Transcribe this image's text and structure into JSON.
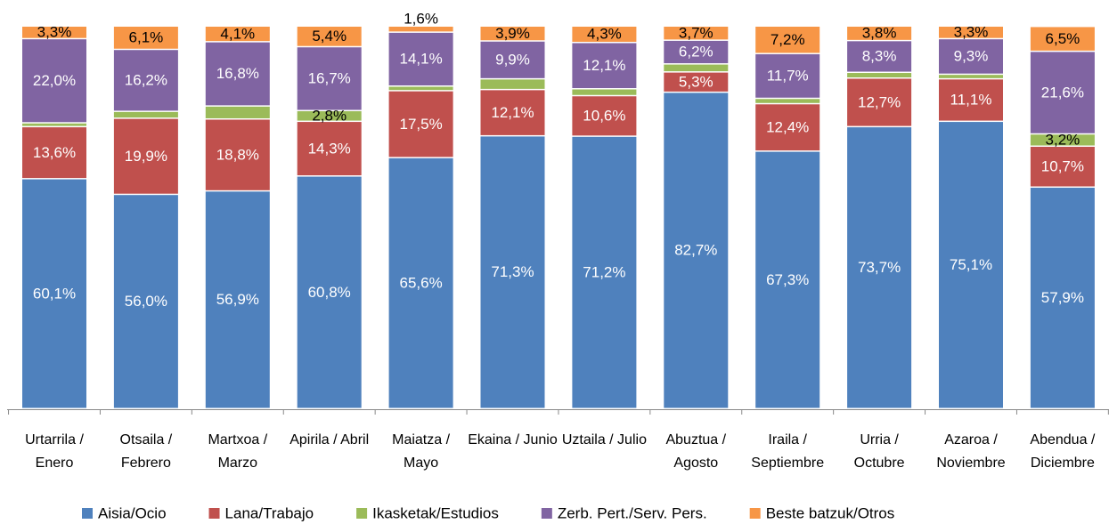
{
  "chart_data": {
    "type": "stacked_bar",
    "categories": [
      "Urtarrila / Enero",
      "Otsaila / Febrero",
      "Martxoa / Marzo",
      "Apirila / Abril",
      "Maiatza / Mayo",
      "Ekaina / Junio",
      "Uztaila / Julio",
      "Abuztua / Agosto",
      "Iraila / Septiembre",
      "Urria / Octubre",
      "Azaroa / Noviembre",
      "Abendua / Diciembre"
    ],
    "ylim": [
      0,
      100
    ],
    "series": [
      {
        "name": "Aisia/Ocio",
        "color": "#4f81bd",
        "values": [
          60.1,
          56.0,
          56.9,
          60.8,
          65.6,
          71.3,
          71.2,
          82.7,
          67.3,
          73.7,
          75.1,
          57.9
        ],
        "value_labels": [
          "60,1%",
          "56,0%",
          "56,9%",
          "60,8%",
          "65,6%",
          "71,3%",
          "71,2%",
          "82,7%",
          "67,3%",
          "73,7%",
          "75,1%",
          "57,9%"
        ]
      },
      {
        "name": "Lana/Trabajo",
        "color": "#c0504d",
        "values": [
          13.6,
          19.9,
          18.8,
          14.3,
          17.5,
          12.1,
          10.6,
          5.3,
          12.4,
          12.7,
          11.1,
          10.7
        ],
        "value_labels": [
          "13,6%",
          "19,9%",
          "18,8%",
          "14,3%",
          "17,5%",
          "12,1%",
          "10,6%",
          "5,3%",
          "12,4%",
          "12,7%",
          "11,1%",
          "10,7%"
        ]
      },
      {
        "name": "Ikasketak/Estudios",
        "color": "#9bbb59",
        "values": [
          1.0,
          1.8,
          3.4,
          2.8,
          1.2,
          2.8,
          1.8,
          2.1,
          1.4,
          1.5,
          1.2,
          3.2
        ],
        "value_labels": [
          null,
          null,
          null,
          "2,8%",
          null,
          null,
          null,
          null,
          null,
          null,
          null,
          "3,2%"
        ]
      },
      {
        "name": "Zerb. Pert./Serv. Pers.",
        "color": "#8064a2",
        "values": [
          22.0,
          16.2,
          16.8,
          16.7,
          14.1,
          9.9,
          12.1,
          6.2,
          11.7,
          8.3,
          9.3,
          21.6
        ],
        "value_labels": [
          "22,0%",
          "16,2%",
          "16,8%",
          "16,7%",
          "14,1%",
          "9,9%",
          "12,1%",
          "6,2%",
          "11,7%",
          "8,3%",
          "9,3%",
          "21,6%"
        ]
      },
      {
        "name": "Beste batzuk/Otros",
        "color": "#f79646",
        "values": [
          3.3,
          6.1,
          4.1,
          5.4,
          1.6,
          3.9,
          4.3,
          3.7,
          7.2,
          3.8,
          3.3,
          6.5
        ],
        "value_labels": [
          "3,3%",
          "6,1%",
          "4,1%",
          "5,4%",
          "1,6%",
          "3,9%",
          "4,3%",
          "3,7%",
          "7,2%",
          "3,8%",
          "3,3%",
          "6,5%"
        ]
      }
    ]
  }
}
